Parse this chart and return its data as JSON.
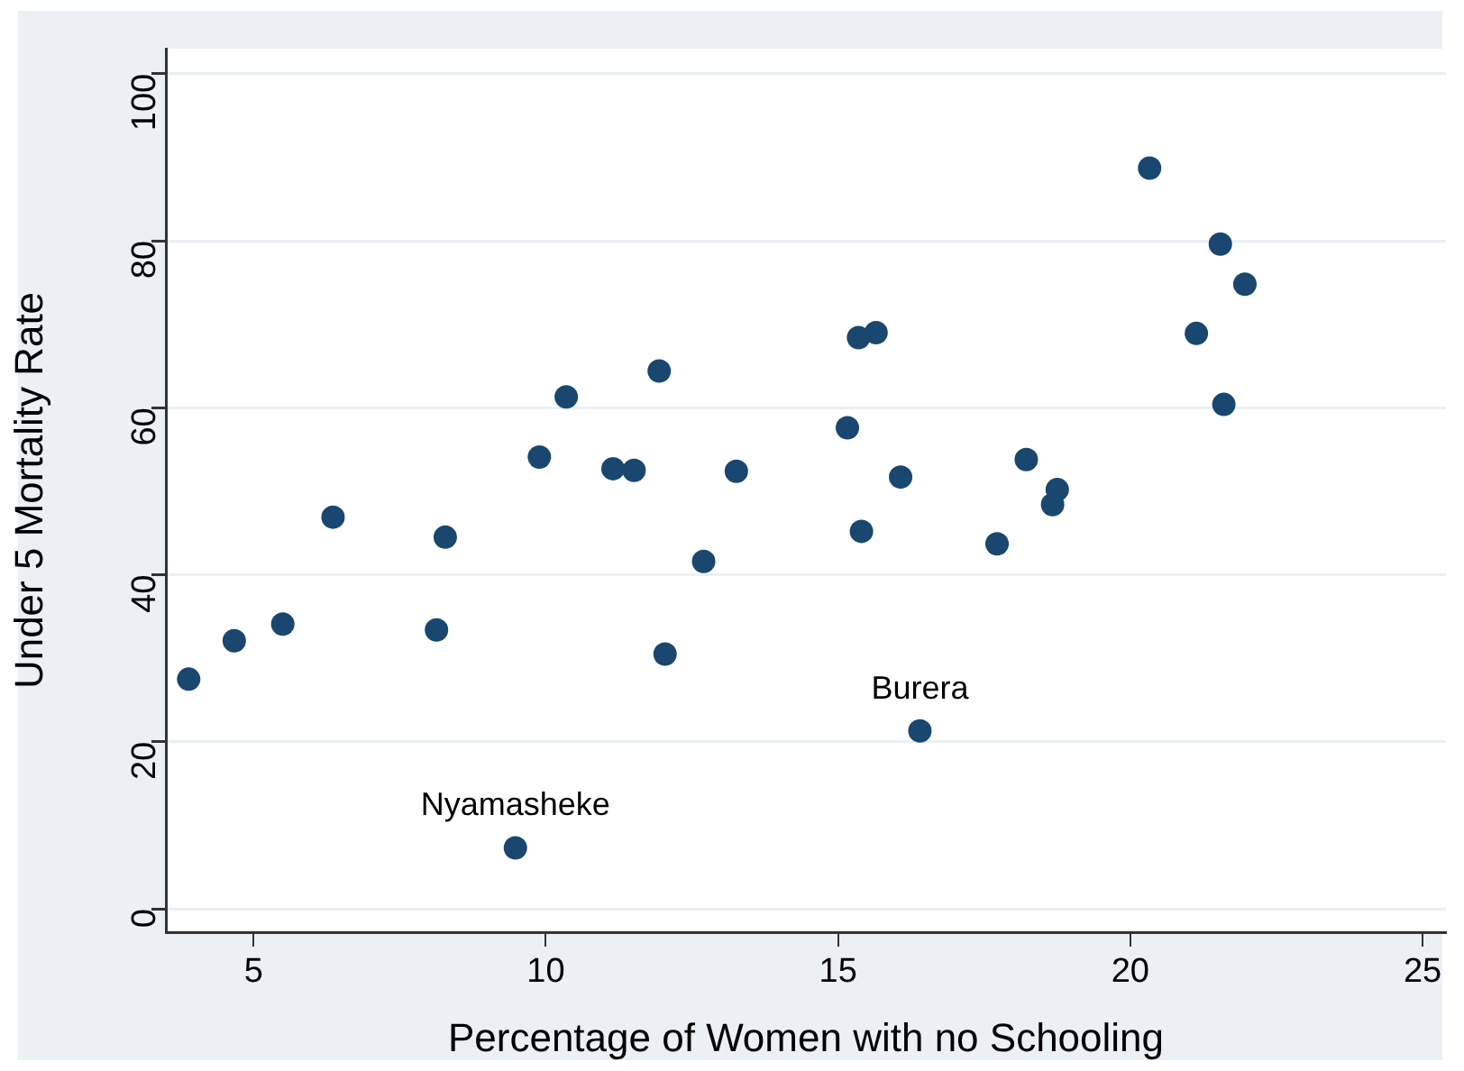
{
  "chart_data": {
    "type": "scatter",
    "xlabel": "Percentage of Women with no Schooling",
    "ylabel": "Under 5 Mortality Rate",
    "xlim": [
      3.5,
      25.4
    ],
    "ylim": [
      -2.8,
      103
    ],
    "xticks": [
      5,
      10,
      15,
      20,
      25
    ],
    "yticks": [
      0,
      20,
      40,
      60,
      80,
      100
    ],
    "grid": "y",
    "marker": "circle",
    "legend": false,
    "series": [
      {
        "color": "#1a476f",
        "x": [
          3.89,
          4.67,
          5.5,
          6.36,
          8.28,
          8.13,
          9.48,
          9.89,
          10.35,
          11.15,
          11.51,
          11.94,
          12.04,
          12.7,
          13.26,
          15.16,
          15.35,
          15.65,
          15.4,
          16.07,
          16.4,
          17.72,
          18.22,
          18.67,
          18.75,
          20.33,
          21.13,
          21.54,
          21.6,
          21.96
        ],
        "values": [
          27.5,
          32.1,
          34.1,
          46.9,
          44.5,
          33.4,
          7.3,
          54.1,
          61.3,
          52.7,
          52.5,
          64.4,
          30.5,
          41.6,
          52.4,
          57.6,
          68.4,
          69.0,
          45.2,
          51.7,
          21.3,
          43.7,
          53.8,
          48.4,
          50.2,
          88.7,
          68.9,
          79.6,
          60.4,
          74.8
        ]
      }
    ],
    "annotations": [
      {
        "text": "Nyamasheke",
        "x": 9.48,
        "y": 7.3
      },
      {
        "text": "Burera",
        "x": 16.4,
        "y": 21.3
      }
    ]
  }
}
